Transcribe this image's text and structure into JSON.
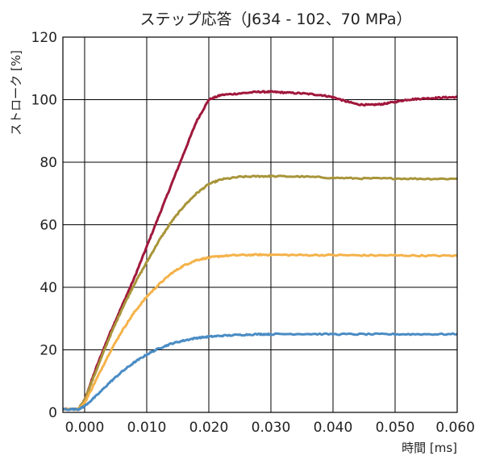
{
  "chart_data": {
    "type": "line",
    "title": "ステップ応答（J634 - 102、70 MPa）",
    "xlabel": "時間 [ms]",
    "ylabel": "ストローク [%]",
    "xlim": [
      -0.0035,
      0.06
    ],
    "ylim": [
      0,
      120
    ],
    "x_ticks": [
      "0.000",
      "0.010",
      "0.020",
      "0.030",
      "0.040",
      "0.050",
      "0.060"
    ],
    "y_ticks": [
      "0",
      "20",
      "40",
      "60",
      "80",
      "100",
      "120"
    ],
    "grid": true,
    "legend": "none",
    "series": [
      {
        "color": "#a0183c",
        "x": [
          -0.0035,
          -0.001,
          0.0,
          0.002,
          0.004,
          0.006,
          0.008,
          0.01,
          0.012,
          0.014,
          0.016,
          0.018,
          0.02,
          0.022,
          0.025,
          0.028,
          0.03,
          0.032,
          0.035,
          0.038,
          0.04,
          0.042,
          0.044,
          0.046,
          0.048,
          0.05,
          0.052,
          0.054,
          0.056,
          0.058,
          0.06
        ],
        "y": [
          1,
          1,
          4,
          15,
          25,
          34,
          43,
          53,
          63,
          73,
          83,
          93,
          100,
          101.5,
          102,
          102.5,
          102.5,
          102.3,
          102,
          101.5,
          100.8,
          99.5,
          98.5,
          98.3,
          98.6,
          99.3,
          100,
          100.3,
          100.5,
          100.7,
          100.8
        ]
      },
      {
        "color": "#a8953a",
        "x": [
          -0.0035,
          -0.001,
          0.0,
          0.002,
          0.004,
          0.006,
          0.008,
          0.01,
          0.012,
          0.014,
          0.016,
          0.018,
          0.02,
          0.022,
          0.025,
          0.028,
          0.03,
          0.035,
          0.04,
          0.045,
          0.05,
          0.055,
          0.06
        ],
        "y": [
          1,
          1,
          4,
          14,
          24,
          33,
          41,
          48,
          55,
          61,
          66,
          70,
          73,
          74.5,
          75.3,
          75.5,
          75.5,
          75.4,
          75,
          74.8,
          74.8,
          74.7,
          74.7
        ]
      },
      {
        "color": "#f5b24a",
        "x": [
          -0.0035,
          -0.001,
          0.0,
          0.002,
          0.004,
          0.006,
          0.008,
          0.01,
          0.012,
          0.014,
          0.016,
          0.018,
          0.02,
          0.022,
          0.025,
          0.028,
          0.03,
          0.035,
          0.04,
          0.045,
          0.05,
          0.055,
          0.06
        ],
        "y": [
          1,
          1,
          3,
          11,
          19,
          26,
          32,
          37,
          41,
          44.5,
          47,
          48.7,
          49.5,
          50,
          50.3,
          50.4,
          50.4,
          50.3,
          50.3,
          50.2,
          50.2,
          50.1,
          50.1
        ]
      },
      {
        "color": "#4a8cc4",
        "x": [
          -0.0035,
          -0.001,
          0.0,
          0.002,
          0.004,
          0.006,
          0.008,
          0.01,
          0.012,
          0.014,
          0.016,
          0.018,
          0.02,
          0.022,
          0.025,
          0.028,
          0.03,
          0.035,
          0.04,
          0.045,
          0.05,
          0.055,
          0.06
        ],
        "y": [
          1,
          1,
          2,
          5.5,
          9.5,
          13,
          16,
          18.5,
          20.5,
          22,
          23,
          23.8,
          24.2,
          24.5,
          24.8,
          25,
          25,
          25.1,
          25,
          25,
          25,
          25,
          25
        ]
      }
    ]
  }
}
